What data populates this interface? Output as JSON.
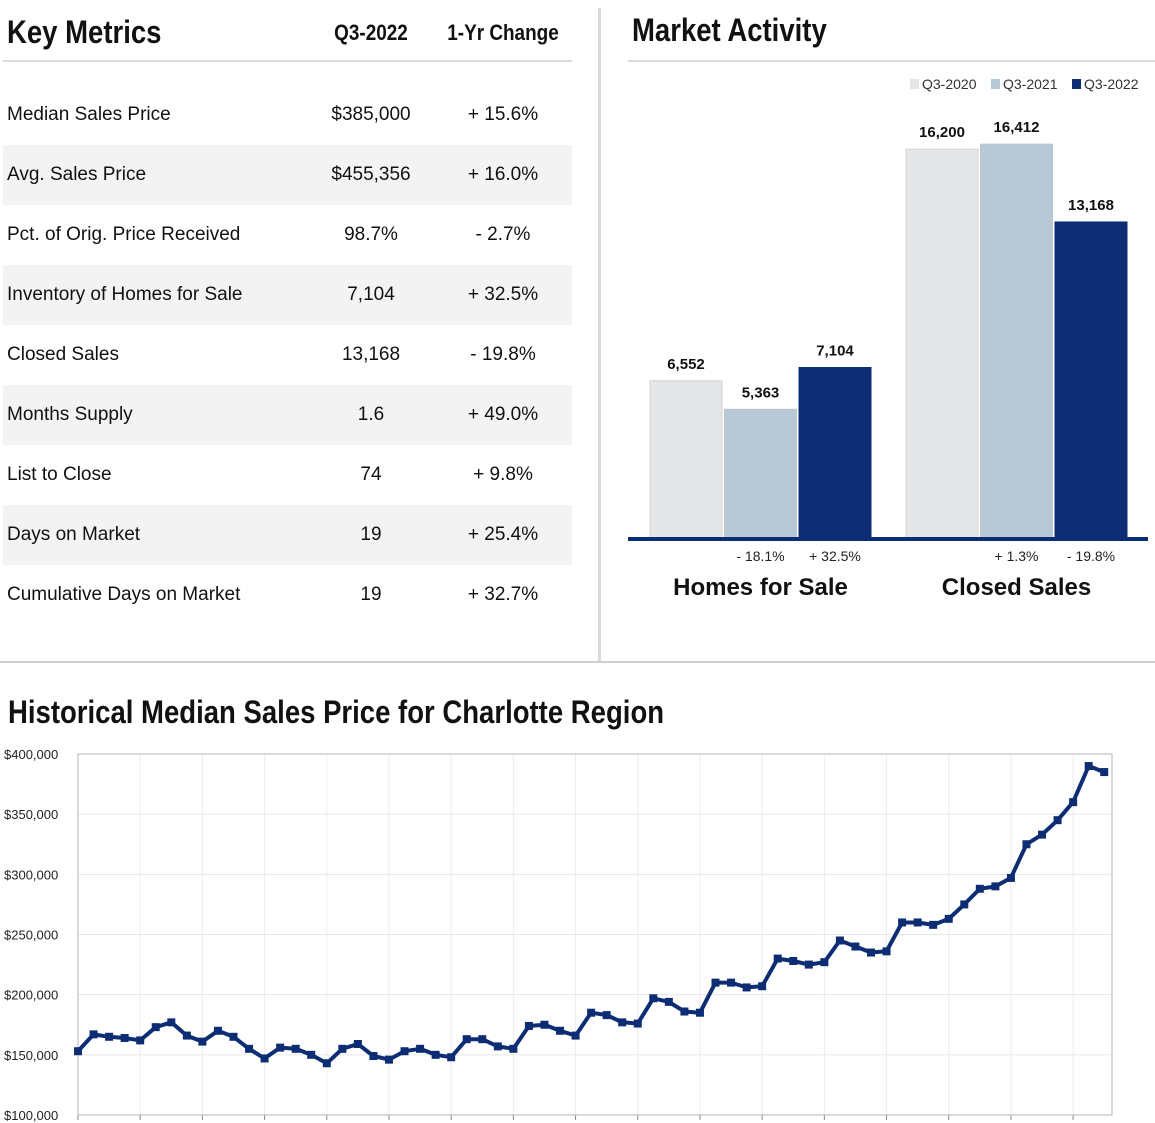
{
  "key_metrics": {
    "title": "Key Metrics",
    "col_period": "Q3-2022",
    "col_change": "1-Yr Change",
    "rows": [
      {
        "label": "Median Sales Price",
        "value": "$385,000",
        "change": "+ 15.6%"
      },
      {
        "label": "Avg. Sales Price",
        "value": "$455,356",
        "change": "+ 16.0%"
      },
      {
        "label": "Pct. of Orig. Price Received",
        "value": "98.7%",
        "change": "- 2.7%"
      },
      {
        "label": "Inventory of Homes for Sale",
        "value": "7,104",
        "change": "+ 32.5%"
      },
      {
        "label": "Closed Sales",
        "value": "13,168",
        "change": "- 19.8%"
      },
      {
        "label": "Months Supply",
        "value": "1.6",
        "change": "+ 49.0%"
      },
      {
        "label": "List to Close",
        "value": "74",
        "change": "+ 9.8%"
      },
      {
        "label": "Days on Market",
        "value": "19",
        "change": "+ 25.4%"
      },
      {
        "label": "Cumulative Days on Market",
        "value": "19",
        "change": "+ 32.7%"
      }
    ]
  },
  "chart_data": [
    {
      "type": "bar",
      "title": "Market Activity",
      "categories": [
        "Homes for Sale",
        "Closed Sales"
      ],
      "series": [
        {
          "name": "Q3-2020",
          "color": "#e5e6e8",
          "values": [
            6552,
            16200
          ],
          "labels": [
            "6,552",
            "16,200"
          ]
        },
        {
          "name": "Q3-2021",
          "color": "#b9c8d5",
          "values": [
            5363,
            16412
          ],
          "labels": [
            "5,363",
            "16,412"
          ]
        },
        {
          "name": "Q3-2022",
          "color": "#0c2d74",
          "values": [
            7104,
            13168
          ],
          "labels": [
            "7,104",
            "13,168"
          ]
        }
      ],
      "changes": [
        [
          "- 18.1%",
          "+ 32.5%"
        ],
        [
          "+ 1.3%",
          "- 19.8%"
        ]
      ],
      "legend": "top-right",
      "ylim": [
        0,
        17000
      ]
    },
    {
      "type": "line",
      "title": "Historical Median Sales Price for Charlotte Region",
      "ylabel": "",
      "ylim": [
        100000,
        400000
      ],
      "yticks": [
        100000,
        150000,
        200000,
        250000,
        300000,
        350000,
        400000
      ],
      "ytick_labels": [
        "$100,000",
        "$150,000",
        "$200,000",
        "$250,000",
        "$300,000",
        "$350,000",
        "$400,000"
      ],
      "grid": true,
      "color": "#0c2d74",
      "series": [
        {
          "name": "Median Sales Price",
          "values": [
            153000,
            167000,
            165000,
            164000,
            162000,
            173000,
            177000,
            166000,
            161000,
            170000,
            165000,
            155000,
            147000,
            156000,
            155000,
            150000,
            143000,
            155000,
            159000,
            149000,
            146000,
            153000,
            155000,
            150000,
            148000,
            163000,
            163000,
            157000,
            155000,
            174000,
            175000,
            170000,
            166000,
            185000,
            183000,
            177000,
            176000,
            197000,
            194000,
            186000,
            185000,
            210000,
            210000,
            206000,
            207000,
            230000,
            228000,
            225000,
            227000,
            245000,
            240000,
            235000,
            236000,
            260000,
            260000,
            258000,
            263000,
            275000,
            288000,
            290000,
            297000,
            325000,
            333000,
            345000,
            360000,
            390000,
            385000
          ]
        }
      ]
    }
  ]
}
